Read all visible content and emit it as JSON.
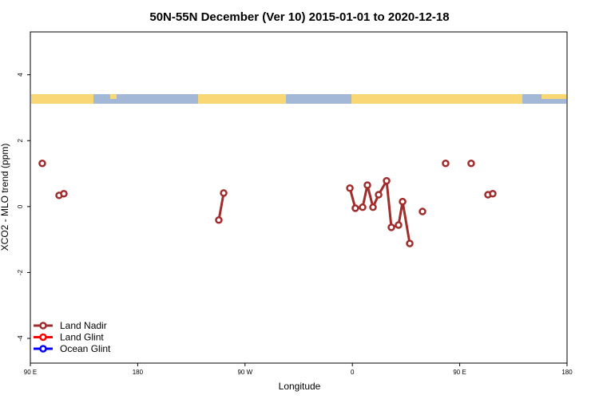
{
  "chart_data": {
    "type": "line",
    "title": "50N-55N December (Ver 10)   2015-01-01 to 2020-12-18",
    "xlabel": "Longitude",
    "ylabel": "XCO2 - MLO trend (ppm)",
    "xlim": [
      90,
      540
    ],
    "xticks": [
      {
        "value": 90,
        "label": "90 E"
      },
      {
        "value": 180,
        "label": "180"
      },
      {
        "value": 270,
        "label": "90 W"
      },
      {
        "value": 360,
        "label": "0"
      },
      {
        "value": 450,
        "label": "90 E"
      },
      {
        "value": 540,
        "label": "180"
      }
    ],
    "ylim": [
      -4.75,
      5.3
    ],
    "yticks": [
      -4,
      -2,
      0,
      2,
      4
    ],
    "legend": "bottom-left",
    "series": [
      {
        "name": "Land Nadir",
        "color": "#a02c2c",
        "x": [
          100.0,
          null,
          114.1,
          118.1,
          null,
          248.0,
          252.1,
          null,
          357.9,
          362.5,
          368.6,
          372.6,
          377.3,
          382.0,
          388.7,
          392.7,
          398.7,
          402.1,
          408.1,
          null,
          418.8,
          null,
          438.2,
          null,
          459.6,
          null,
          473.7,
          477.7
        ],
        "values": [
          1.31,
          null,
          0.34,
          0.39,
          null,
          -0.41,
          0.41,
          null,
          0.56,
          -0.05,
          -0.02,
          0.65,
          -0.02,
          0.36,
          0.78,
          -0.63,
          -0.56,
          0.15,
          -1.12,
          null,
          -0.15,
          null,
          1.31,
          null,
          1.31,
          null,
          0.36,
          0.39
        ]
      },
      {
        "name": "Land Glint",
        "color": "#ff0000",
        "x": [],
        "values": []
      },
      {
        "name": "Ocean Glint",
        "color": "#0000ff",
        "x": [],
        "values": []
      }
    ]
  }
}
